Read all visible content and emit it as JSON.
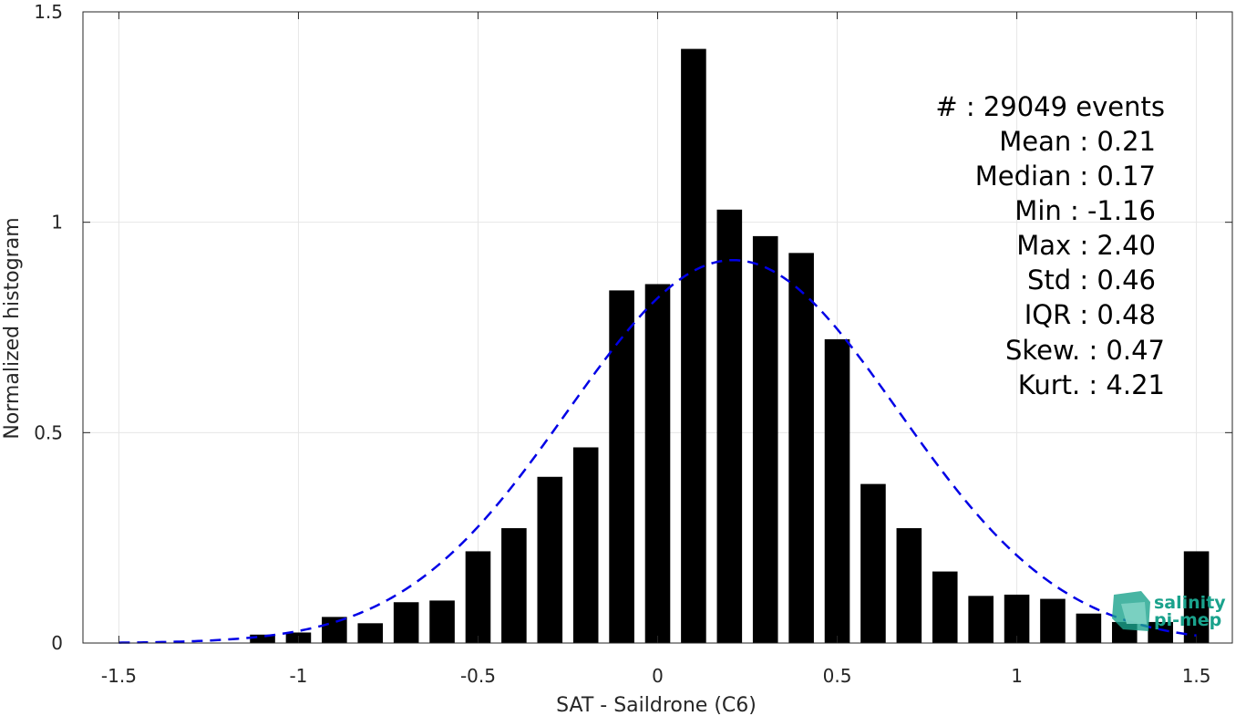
{
  "chart_data": {
    "type": "bar",
    "xlabel": "SAT - Saildrone (C6)",
    "ylabel": "Normalized histogram",
    "xlim": [
      -1.6,
      1.6
    ],
    "ylim": [
      0,
      1.5
    ],
    "grid": true,
    "x_ticks": [
      -1.5,
      -1,
      -0.5,
      0,
      0.5,
      1,
      1.5
    ],
    "x_tick_labels": [
      "-1.5",
      "-1",
      "-0.5",
      "0",
      "0.5",
      "1",
      "1.5"
    ],
    "y_ticks": [
      0,
      0.5,
      1,
      1.5
    ],
    "y_tick_labels": [
      "0",
      "0.5",
      "1",
      "1.5"
    ],
    "bin_width": 0.1,
    "bar_width": 0.07,
    "series": [
      {
        "type": "bar",
        "color": "#000000",
        "x": [
          -1.1,
          -1.0,
          -0.9,
          -0.8,
          -0.7,
          -0.6,
          -0.5,
          -0.4,
          -0.3,
          -0.2,
          -0.1,
          0.0,
          0.1,
          0.2,
          0.3,
          0.4,
          0.5,
          0.6,
          0.7,
          0.8,
          0.9,
          1.0,
          1.1,
          1.2,
          1.3,
          1.4,
          1.5
        ],
        "values": [
          0.02,
          0.025,
          0.062,
          0.047,
          0.097,
          0.101,
          0.218,
          0.273,
          0.395,
          0.465,
          0.838,
          0.853,
          1.412,
          1.03,
          0.967,
          0.927,
          0.722,
          0.378,
          0.273,
          0.17,
          0.112,
          0.115,
          0.105,
          0.07,
          0.05,
          0.05,
          0.218
        ]
      },
      {
        "type": "line",
        "style": "dashed",
        "color": "#0000e6",
        "mean": 0.21,
        "std": 0.46,
        "peak": 0.91,
        "x_range": [
          -1.5,
          1.5
        ]
      }
    ],
    "annotation": {
      "lines": [
        "#  : 29049 events",
        "Mean : 0.21",
        "Median : 0.17",
        "Min : -1.16",
        "Max : 2.40",
        "Std : 0.46",
        "IQR : 0.48",
        "Skew. : 0.47",
        "Kurt. : 4.21"
      ]
    }
  },
  "logo": {
    "line1": "salinity",
    "line2": "pi-mep"
  },
  "colors": {
    "bars": "#000000",
    "fit_curve": "#0000e6",
    "logo": "#1aa28c",
    "grid": "#e6e6e6",
    "axis": "#262626"
  }
}
